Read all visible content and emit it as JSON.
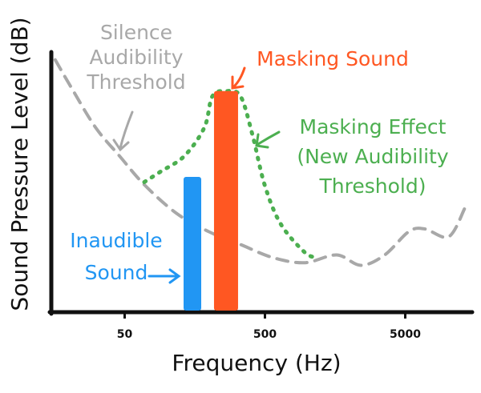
{
  "chart_data": {
    "type": "line",
    "xlabel": "Frequency (Hz)",
    "ylabel": "Sound Pressure Level (dB)",
    "xscale": "log",
    "xlim": [
      15,
      15000
    ],
    "xticks": [
      50,
      500,
      5000
    ],
    "ylim": [
      0,
      100
    ],
    "series": [
      {
        "kind": "line",
        "style": "dashed",
        "color": "#a8a8a8",
        "x": [
          16,
          21,
          31,
          46,
          69,
          117,
          198,
          335,
          567,
          960,
          1625,
          2410,
          3570,
          5310,
          6900,
          10200,
          13300
        ],
        "values": [
          97,
          86,
          71,
          60,
          49,
          38,
          31,
          26,
          21,
          19,
          22,
          18,
          22,
          31,
          32,
          29,
          40
        ]
      },
      {
        "kind": "line",
        "style": "dotted",
        "color": "#4caf50",
        "x": [
          69,
          90,
          133,
          185,
          211,
          264,
          335,
          408,
          497,
          646,
          960,
          1170
        ],
        "values": [
          50,
          54,
          60,
          71,
          83,
          85,
          83,
          68,
          49,
          34,
          23,
          21
        ]
      },
      {
        "kind": "bar",
        "color": "#2196f3",
        "x": [
          152
        ],
        "values": [
          52
        ]
      },
      {
        "kind": "bar",
        "color": "#ff5722",
        "x": [
          264
        ],
        "values": [
          85
        ]
      }
    ],
    "annotations": [
      {
        "lines": [
          "Silence",
          "Audibility",
          "Threshold"
        ],
        "color": "#a8a8a8"
      },
      {
        "lines": [
          "Masking Sound"
        ],
        "color": "#ff5722"
      },
      {
        "lines": [
          "Masking Effect",
          "(New Audibility",
          "Threshold)"
        ],
        "color": "#4caf50"
      },
      {
        "lines": [
          "Inaudible",
          "Sound"
        ],
        "color": "#2196f3"
      }
    ]
  }
}
